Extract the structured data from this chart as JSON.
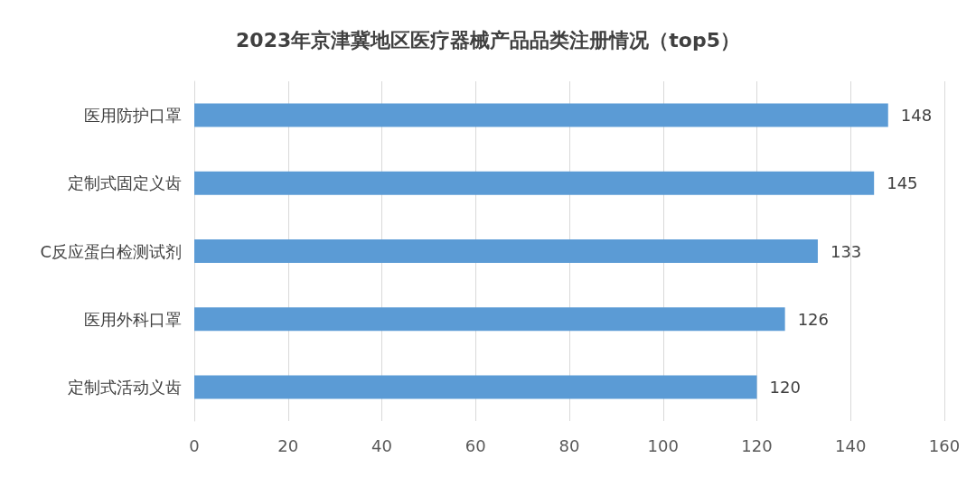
{
  "chart_data": {
    "type": "bar",
    "orientation": "horizontal",
    "title": "2023年京津冀地区医疗器械产品品类注册情况（top5）",
    "categories": [
      "医用防护口罩",
      "定制式固定义齿",
      "C反应蛋白检测试剂",
      "医用外科口罩",
      "定制式活动义齿"
    ],
    "values": [
      148,
      145,
      133,
      126,
      120
    ],
    "color": "#5b9bd5",
    "xlim": [
      0,
      160
    ],
    "xticks": [
      0,
      20,
      40,
      60,
      80,
      100,
      120,
      140,
      160
    ],
    "grid": "x",
    "data_labels": true
  }
}
